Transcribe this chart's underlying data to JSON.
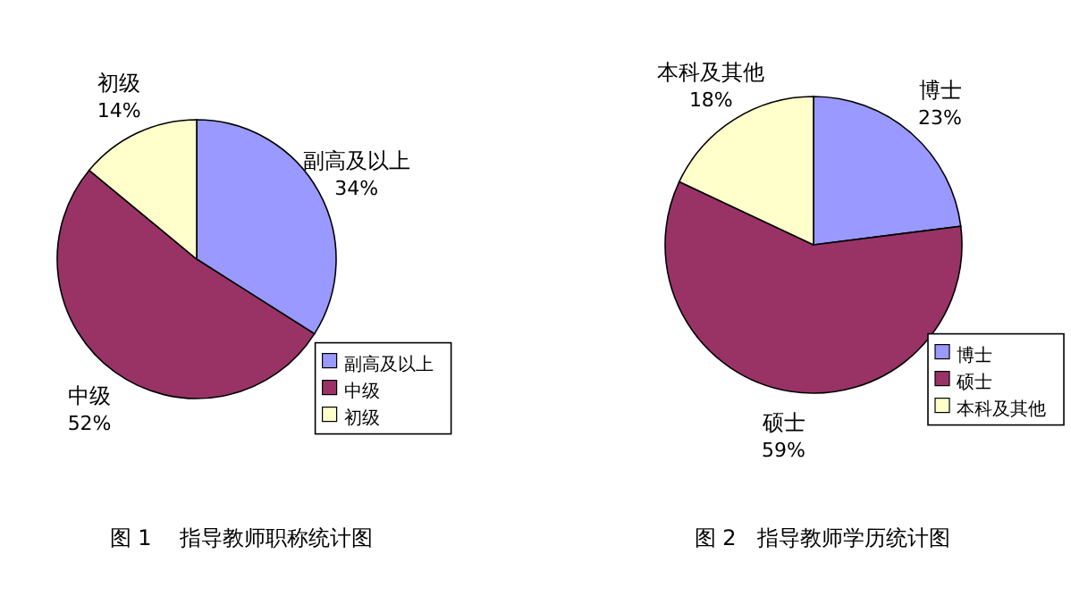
{
  "chart_data": [
    {
      "type": "pie",
      "title": "图 1　 指导教师职称统计图",
      "categories": [
        "副高及以上",
        "中级",
        "初级"
      ],
      "values": [
        34,
        52,
        14
      ],
      "value_labels": [
        "34%",
        "52%",
        "14%"
      ],
      "colors": [
        "#9999ff",
        "#993366",
        "#ffffcc"
      ],
      "legend": "bottom right"
    },
    {
      "type": "pie",
      "title": "图 2　指导教师学历统计图",
      "categories": [
        "博士",
        "硕士",
        "本科及其他"
      ],
      "values": [
        23,
        59,
        18
      ],
      "value_labels": [
        "23%",
        "59%",
        "18%"
      ],
      "colors": [
        "#9999ff",
        "#993366",
        "#ffffcc"
      ],
      "legend": "bottom right"
    }
  ]
}
